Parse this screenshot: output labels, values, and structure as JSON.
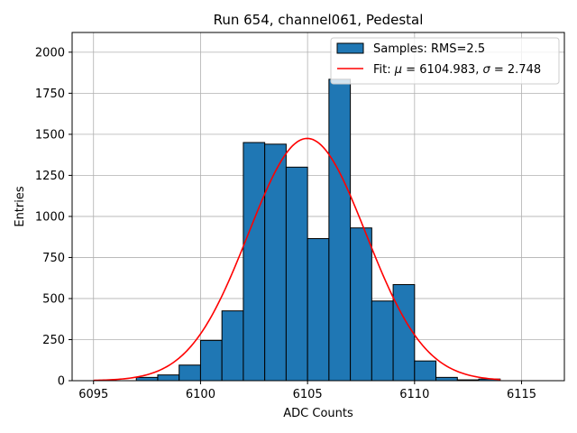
{
  "chart_data": {
    "type": "bar",
    "title": "Run 654, channel061, Pedestal",
    "xlabel": "ADC Counts",
    "ylabel": "Entries",
    "xlim": [
      6094,
      6117
    ],
    "ylim": [
      0,
      2120
    ],
    "xticks": [
      6095,
      6100,
      6105,
      6110,
      6115
    ],
    "yticks": [
      0,
      250,
      500,
      750,
      1000,
      1250,
      1500,
      1750,
      2000
    ],
    "grid": true,
    "legend_position": "top-right",
    "histogram": {
      "name": "Samples: RMS=2.5",
      "color": "#1f77b4",
      "bin_edges": [
        6097,
        6098,
        6099,
        6100,
        6101,
        6102,
        6103,
        6104,
        6105,
        6106,
        6107,
        6108,
        6109,
        6110,
        6111,
        6112,
        6113,
        6114
      ],
      "counts": [
        20,
        35,
        95,
        245,
        425,
        1450,
        1440,
        1300,
        865,
        1835,
        930,
        485,
        585,
        120,
        20,
        5,
        10
      ]
    },
    "fit": {
      "name": "Fit: μ = 6104.983, σ = 2.748",
      "label_prefix": "Fit: ",
      "mu_symbol": "μ",
      "mu_text": " = 6104.983, ",
      "sigma_symbol": "σ",
      "sigma_text": " = 2.748",
      "color": "#ff0000",
      "mu": 6104.983,
      "sigma": 2.748,
      "amplitude": 1475,
      "x_range": [
        6095,
        6114
      ]
    }
  }
}
